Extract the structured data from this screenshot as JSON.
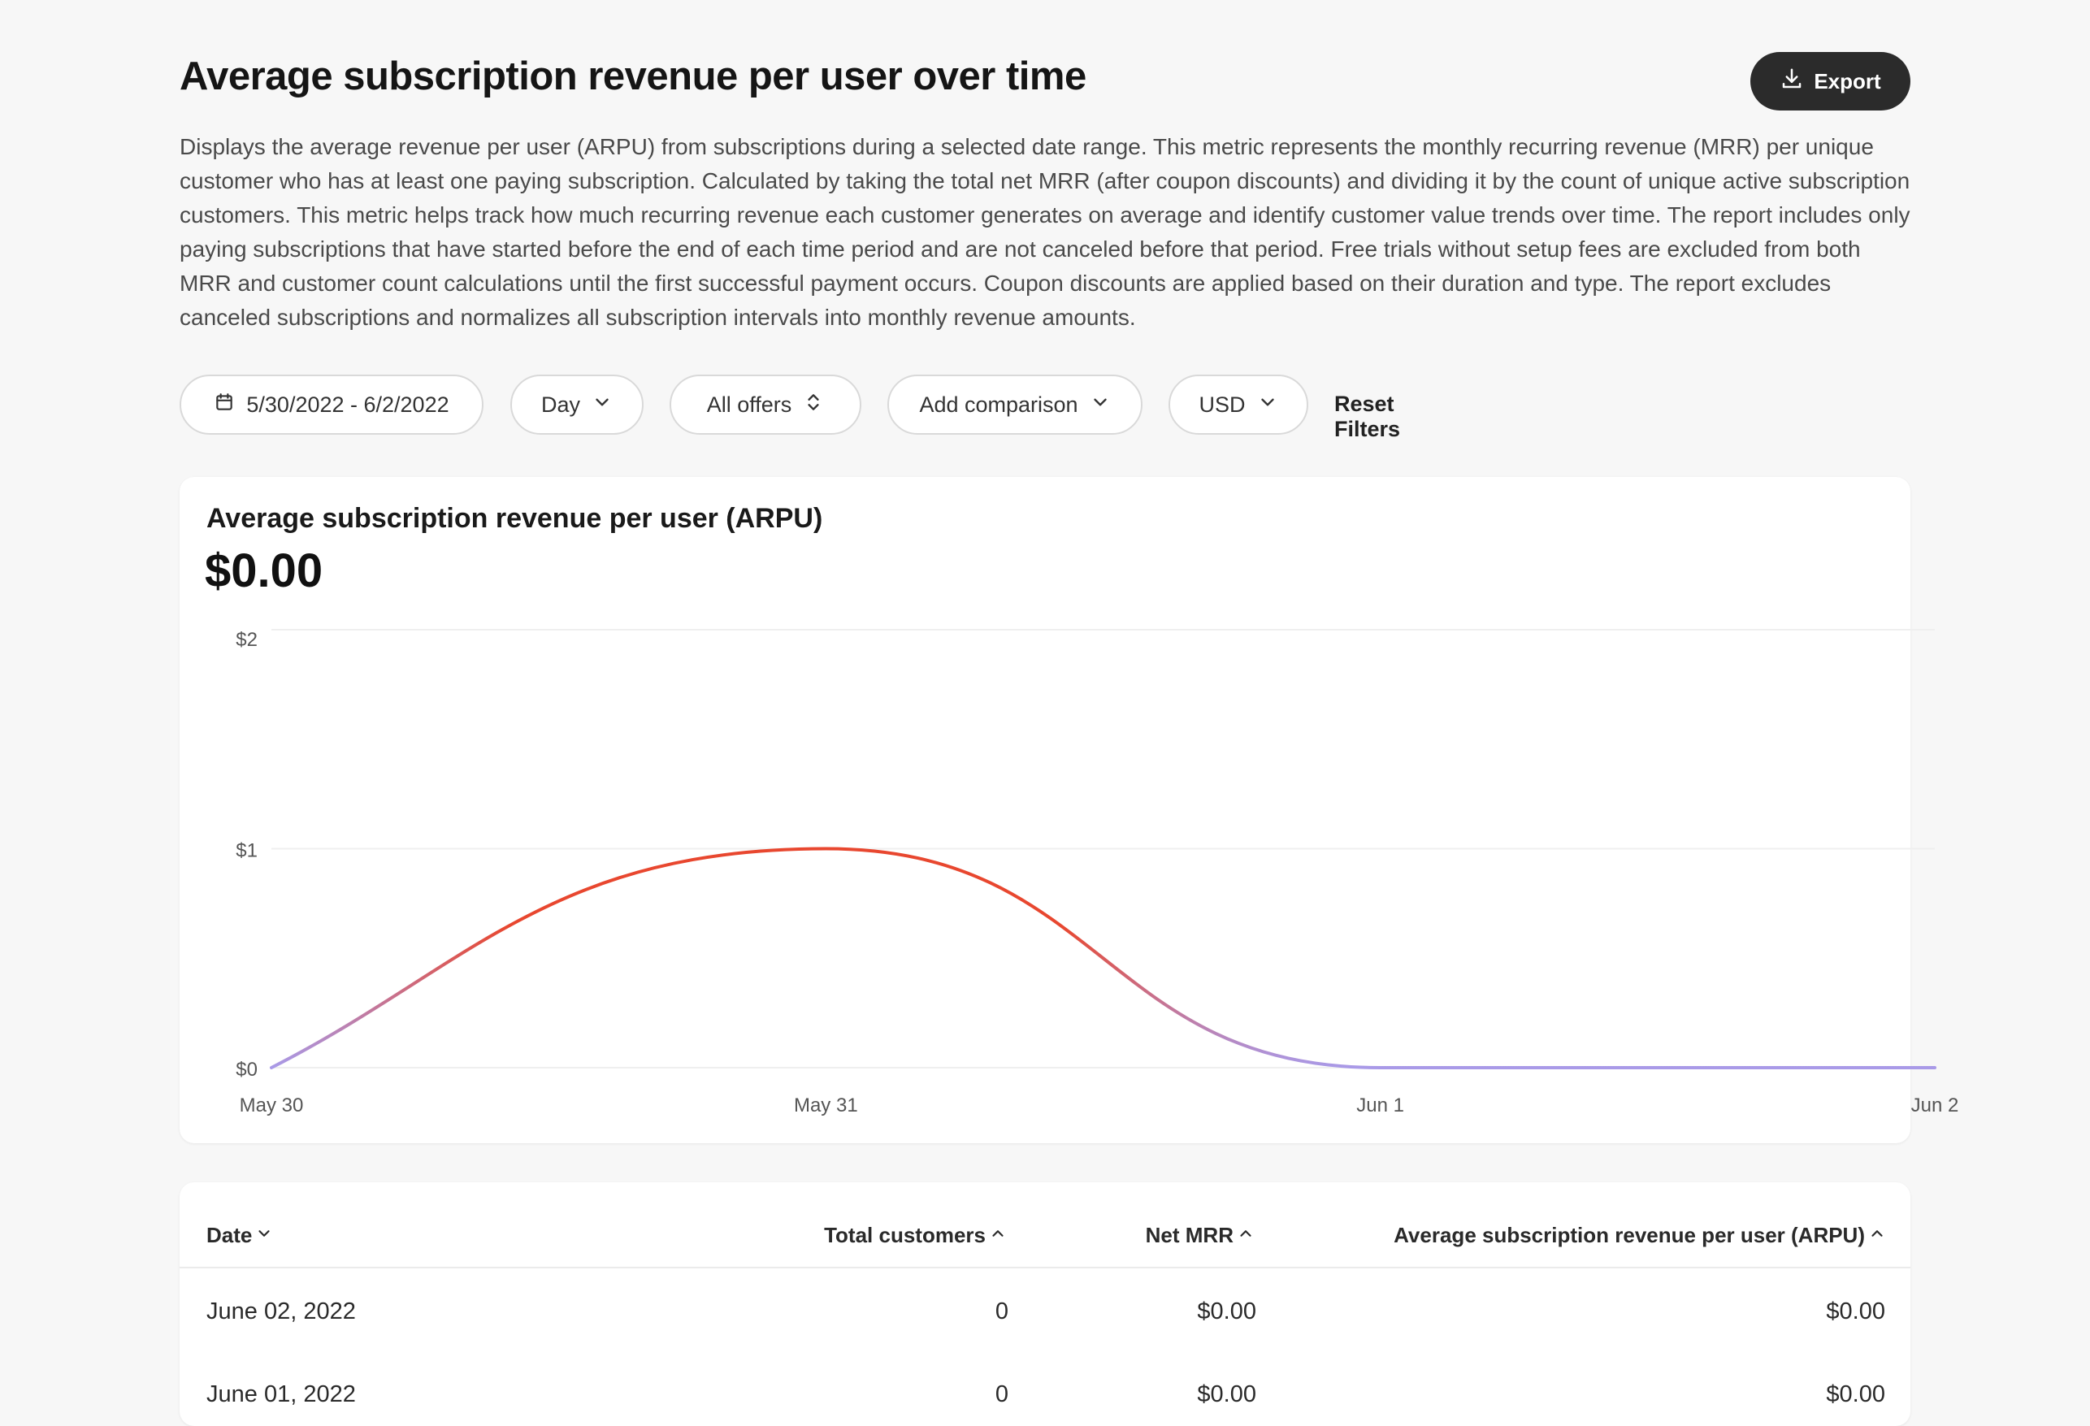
{
  "header": {
    "title": "Average subscription revenue per user over time",
    "export_label": "Export",
    "description": "Displays the average revenue per user (ARPU) from subscriptions during a selected date range. This metric represents the monthly recurring revenue (MRR) per unique customer who has at least one paying subscription. Calculated by taking the total net MRR (after coupon discounts) and dividing it by the count of unique active subscription customers. This metric helps track how much recurring revenue each customer generates on average and identify customer value trends over time. The report includes only paying subscriptions that have started before the end of each time period and are not canceled before that period. Free trials without setup fees are excluded from both MRR and customer count calculations until the first successful payment occurs. Coupon discounts are applied based on their duration and type. The report excludes canceled subscriptions and normalizes all subscription intervals into monthly revenue amounts."
  },
  "filters": {
    "date_range": "5/30/2022 - 6/2/2022",
    "granularity": "Day",
    "offers": "All offers",
    "comparison": "Add comparison",
    "currency": "USD",
    "reset_label": "Reset Filters"
  },
  "chart": {
    "title": "Average subscription revenue per user (ARPU)",
    "value": "$0.00"
  },
  "chart_data": {
    "type": "line",
    "title": "Average subscription revenue per user (ARPU)",
    "x": [
      "May 30",
      "May 31",
      "Jun 1",
      "Jun 2"
    ],
    "series": [
      {
        "values": [
          0,
          1,
          0,
          0
        ]
      }
    ],
    "y_ticks": [
      "$0",
      "$1",
      "$2"
    ],
    "ylim": [
      0,
      2
    ],
    "grid": true,
    "colors": {
      "high": "#e8472f",
      "low": "#a99ae8"
    }
  },
  "table": {
    "columns": [
      "Date",
      "Total customers",
      "Net MRR",
      "Average subscription revenue per user (ARPU)"
    ],
    "rows": [
      [
        "June 02, 2022",
        "0",
        "$0.00",
        "$0.00"
      ],
      [
        "June 01, 2022",
        "0",
        "$0.00",
        "$0.00"
      ]
    ]
  },
  "colors": {
    "background": "#f7f7f7",
    "export_bg": "#2b2b2b",
    "text": "#1f1f1f"
  }
}
